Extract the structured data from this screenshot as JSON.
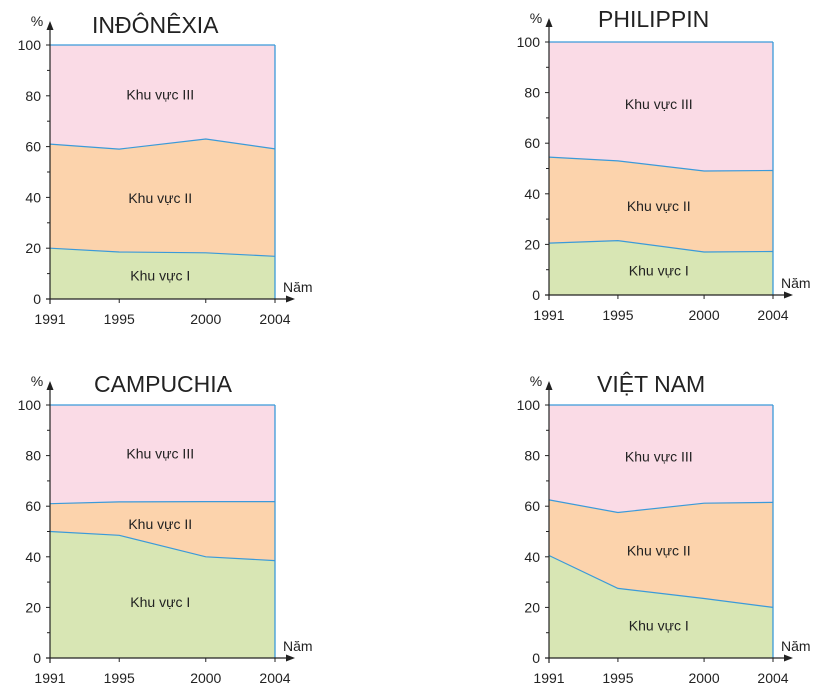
{
  "chart_data": [
    {
      "type": "area",
      "title": "INĐÔNÊXIA",
      "ylabel": "%",
      "xlabel": "Năm",
      "x": [
        "1991",
        "1995",
        "2000",
        "2004"
      ],
      "ylim": [
        0,
        100
      ],
      "yticks": [
        "0",
        "20",
        "40",
        "60",
        "80",
        "100"
      ],
      "stacked": true,
      "series": [
        {
          "name": "Khu vực I",
          "values": [
            20,
            18.5,
            18.2,
            16.8
          ],
          "color": "#d8e6b4"
        },
        {
          "name": "Khu vực II",
          "values": [
            41,
            40.5,
            44.8,
            42.3
          ],
          "color": "#fcd3ac"
        },
        {
          "name": "Khu vực III",
          "values": [
            39,
            41,
            37,
            40.9
          ],
          "color": "#fadbe6"
        }
      ]
    },
    {
      "type": "area",
      "title": "PHILIPPIN",
      "ylabel": "%",
      "xlabel": "Năm",
      "x": [
        "1991",
        "1995",
        "2000",
        "2004"
      ],
      "ylim": [
        0,
        100
      ],
      "yticks": [
        "0",
        "20",
        "40",
        "60",
        "80",
        "100"
      ],
      "stacked": true,
      "series": [
        {
          "name": "Khu vực I",
          "values": [
            20.5,
            21.5,
            17,
            17.2
          ],
          "color": "#d8e6b4"
        },
        {
          "name": "Khu vực II",
          "values": [
            34,
            31.5,
            32,
            32
          ],
          "color": "#fcd3ac"
        },
        {
          "name": "Khu vực III",
          "values": [
            45.5,
            47,
            51,
            50.8
          ],
          "color": "#fadbe6"
        }
      ]
    },
    {
      "type": "area",
      "title": "CAMPUCHIA",
      "ylabel": "%",
      "xlabel": "Năm",
      "x": [
        "1991",
        "1995",
        "2000",
        "2004"
      ],
      "ylim": [
        0,
        100
      ],
      "yticks": [
        "0",
        "20",
        "40",
        "60",
        "80",
        "100"
      ],
      "stacked": true,
      "series": [
        {
          "name": "Khu vực I",
          "values": [
            50,
            48.5,
            40,
            38.5
          ],
          "color": "#d8e6b4"
        },
        {
          "name": "Khu vực II",
          "values": [
            11,
            13.2,
            21.8,
            23.3
          ],
          "color": "#fcd3ac"
        },
        {
          "name": "Khu vực III",
          "values": [
            39,
            38.3,
            38.2,
            38.2
          ],
          "color": "#fadbe6"
        }
      ]
    },
    {
      "type": "area",
      "title": "VIỆT NAM",
      "ylabel": "%",
      "xlabel": "Năm",
      "x": [
        "1991",
        "1995",
        "2000",
        "2004"
      ],
      "ylim": [
        0,
        100
      ],
      "yticks": [
        "0",
        "20",
        "40",
        "60",
        "80",
        "100"
      ],
      "stacked": true,
      "series": [
        {
          "name": "Khu vực I",
          "values": [
            40.5,
            27.5,
            23.5,
            20
          ],
          "color": "#d8e6b4"
        },
        {
          "name": "Khu vực II",
          "values": [
            22,
            30,
            37.7,
            41.5
          ],
          "color": "#fcd3ac"
        },
        {
          "name": "Khu vực III",
          "values": [
            37.5,
            42.5,
            38.8,
            38.5
          ],
          "color": "#fadbe6"
        }
      ]
    }
  ]
}
